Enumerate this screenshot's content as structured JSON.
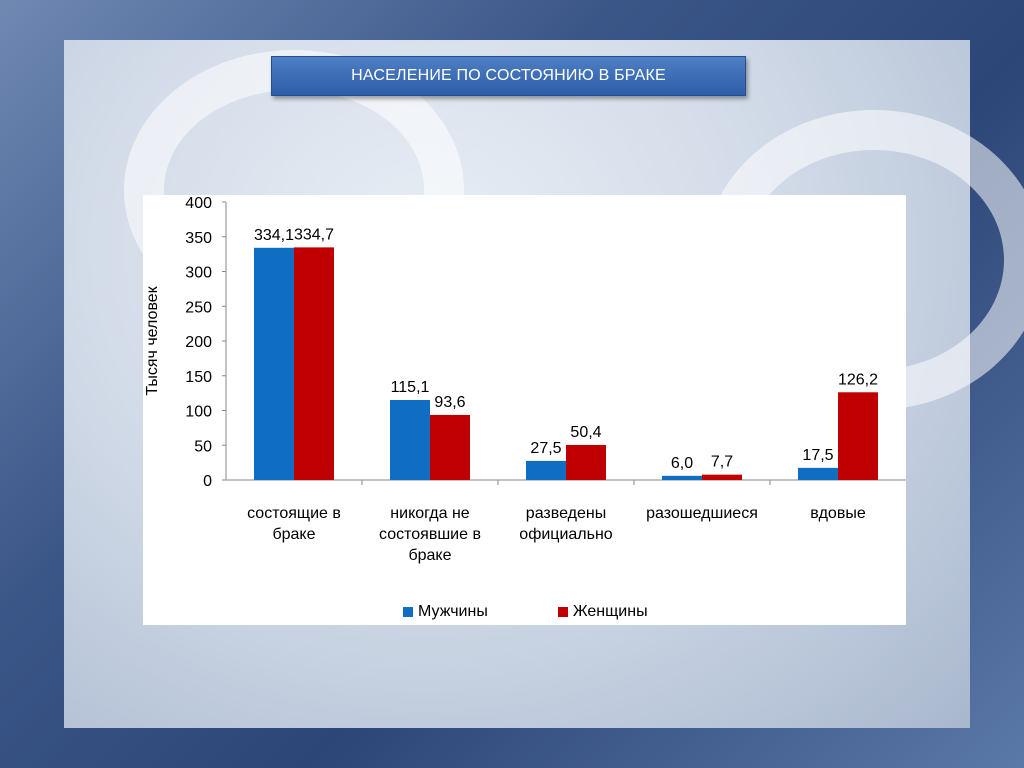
{
  "slide": {
    "title": "НАСЕЛЕНИЕ ПО СОСТОЯНИЮ В БРАКЕ"
  },
  "colors": {
    "men": "#0f6ec2",
    "women": "#c00000",
    "title_bar": "#3a6db6"
  },
  "chart_data": {
    "type": "bar",
    "ylabel": "Тысяч человек",
    "ylim": [
      0,
      400
    ],
    "yticks": [
      0,
      50,
      100,
      150,
      200,
      250,
      300,
      350,
      400
    ],
    "categories": [
      [
        "состоящие в",
        "браке"
      ],
      [
        "никогда не",
        "состоявшие в",
        "браке"
      ],
      [
        "разведены",
        "официально"
      ],
      [
        "разошедшиеся"
      ],
      [
        "вдовые"
      ]
    ],
    "series": [
      {
        "name": "Мужчины",
        "values": [
          334.1,
          115.1,
          27.5,
          6.0,
          17.5
        ],
        "labels": [
          "334,1",
          "115,1",
          "27,5",
          "6,0",
          "17,5"
        ]
      },
      {
        "name": "Женщины",
        "values": [
          334.7,
          93.6,
          50.4,
          7.7,
          126.2
        ],
        "labels": [
          "334,7",
          "93,6",
          "50,4",
          "7,7",
          "126,2"
        ]
      }
    ],
    "legend_position": "bottom",
    "grid": false
  }
}
